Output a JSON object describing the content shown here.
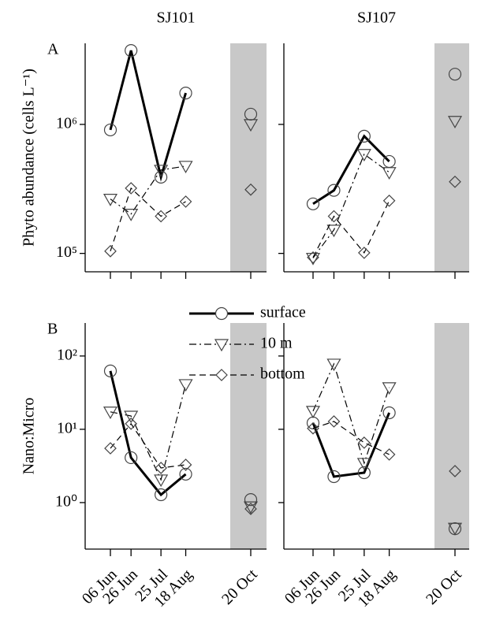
{
  "chart_data": [
    {
      "type": "line",
      "title": "SJ101",
      "panel_label": "A",
      "ylabel": "Phyto abundance  (cells L⁻¹)",
      "log_y": true,
      "x": [
        "06 Jun",
        "26 Jun",
        "25 Jul",
        "18 Aug",
        "20 Oct"
      ],
      "ylim": [
        72000,
        4250000
      ],
      "yticks": [
        {
          "value": 100000,
          "label": "10⁵"
        },
        {
          "value": 1000000,
          "label": "10⁶"
        }
      ],
      "series": [
        {
          "color": "#000000",
          "line_width": 3,
          "line_style": "solid",
          "marker": "circle",
          "values": [
            906000,
            3740000,
            390000,
            1750000,
            1200000
          ]
        },
        {
          "color": "#000000",
          "line_width": 1.2,
          "line_style": "dashdot",
          "marker": "triangle-down",
          "values": [
            264000,
            202000,
            443000,
            475000,
            1000000
          ]
        },
        {
          "color": "#000000",
          "line_width": 1.2,
          "line_style": "dashed",
          "marker": "diamond",
          "values": [
            104000,
            320000,
            194000,
            252000,
            312000
          ]
        }
      ]
    },
    {
      "type": "line",
      "title": "SJ107",
      "log_y": true,
      "x": [
        "06 Jun",
        "26 Jun",
        "25 Jul",
        "18 Aug",
        "20 Oct"
      ],
      "ylim": [
        72000,
        4250000
      ],
      "yticks": [
        100000,
        1000000
      ],
      "series": [
        {
          "color": "#000000",
          "line_width": 3,
          "line_style": "solid",
          "marker": "circle",
          "values": [
            242000,
            308000,
            810000,
            516000,
            2450000
          ]
        },
        {
          "color": "#000000",
          "line_width": 1.2,
          "line_style": "dashdot",
          "marker": "triangle-down",
          "values": [
            92000,
            152000,
            587000,
            425000,
            1060000
          ]
        },
        {
          "color": "#000000",
          "line_width": 1.2,
          "line_style": "dashed",
          "marker": "diamond",
          "values": [
            93000,
            194000,
            101000,
            256000,
            359000
          ]
        }
      ]
    },
    {
      "type": "line",
      "panel_label": "B",
      "ylabel": "Nano:Micro",
      "log_y": true,
      "legend": "top-right",
      "x": [
        "06 Jun",
        "26 Jun",
        "25 Jul",
        "18 Aug",
        "20 Oct"
      ],
      "ylim": [
        0.232,
        282
      ],
      "yticks": [
        {
          "value": 1,
          "label": "10⁰"
        },
        {
          "value": 10,
          "label": "10¹"
        },
        {
          "value": 100,
          "label": "10²"
        }
      ],
      "series": [
        {
          "name": "surface",
          "color": "#000000",
          "line_width": 3,
          "line_style": "solid",
          "marker": "circle",
          "values": [
            62.5,
            4.1,
            1.28,
            2.44,
            1.1
          ]
        },
        {
          "name": "10 m",
          "color": "#000000",
          "line_width": 1.2,
          "line_style": "dashdot",
          "marker": "triangle-down",
          "values": [
            17.3,
            15.2,
            2.05,
            41,
            0.88
          ]
        },
        {
          "name": "bottom",
          "color": "#000000",
          "line_width": 1.2,
          "line_style": "dashed",
          "marker": "diamond",
          "values": [
            5.5,
            11.9,
            2.97,
            3.28,
            0.82
          ]
        }
      ]
    },
    {
      "type": "line",
      "log_y": true,
      "x": [
        "06 Jun",
        "26 Jun",
        "25 Jul",
        "18 Aug",
        "20 Oct"
      ],
      "ylim": [
        0.232,
        282
      ],
      "yticks": [
        1,
        10,
        100
      ],
      "series": [
        {
          "color": "#000000",
          "line_width": 3,
          "line_style": "solid",
          "marker": "circle",
          "values": [
            12.2,
            2.26,
            2.56,
            16.8,
            0.44
          ]
        },
        {
          "color": "#000000",
          "line_width": 1.2,
          "line_style": "dashdot",
          "marker": "triangle-down",
          "values": [
            17.7,
            78,
            3.45,
            37.2,
            0.45
          ]
        },
        {
          "color": "#000000",
          "line_width": 1.2,
          "line_style": "dashed",
          "marker": "diamond",
          "values": [
            10.3,
            12.8,
            6.57,
            4.53,
            2.69
          ]
        }
      ]
    }
  ]
}
